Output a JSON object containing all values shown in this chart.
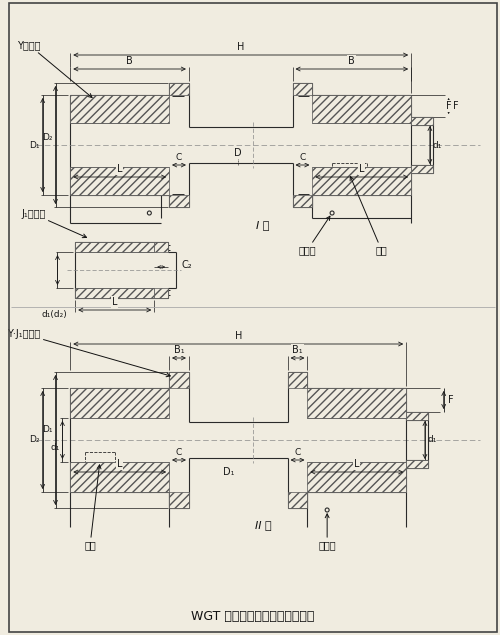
{
  "bg_color": "#f0ece0",
  "line_color": "#2a2a2a",
  "dim_color": "#1a1a1a",
  "text_color": "#111111",
  "title": "WGT 型接中间套鼓形齿式联轴器",
  "type1": "I 型",
  "type2": "II 型",
  "label_Y": "Y型轴孔",
  "label_J1": "J₁型轴孔",
  "label_YJ1": "Y·J₁型轴孔",
  "label_oil1": "注油孔",
  "label_mark1": "标志",
  "label_oil2": "注油孔",
  "label_mark2": "标志"
}
